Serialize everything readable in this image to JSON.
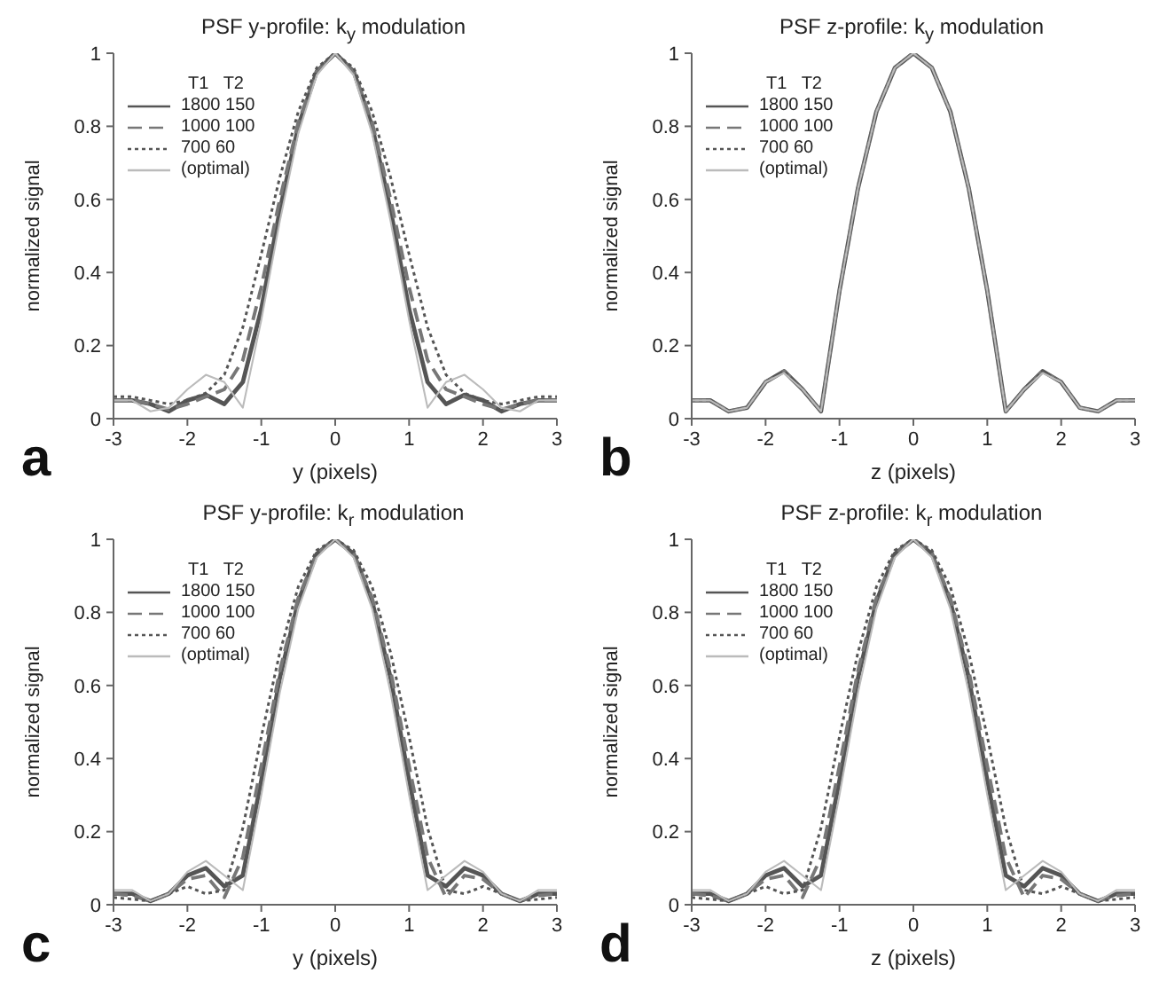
{
  "chart_data": [
    {
      "type": "line",
      "title": "PSF y-profile: k$_{y}$ modulation",
      "xlabel": "y (pixels)",
      "ylabel": "normalized signal",
      "legend_title": "T1   T2",
      "legend": "top left",
      "marker": "none",
      "annotations": [
        "a"
      ],
      "x": [
        -3,
        -2.75,
        -2.5,
        -2.25,
        -2,
        -1.75,
        -1.5,
        -1.25,
        -1,
        -0.75,
        -0.5,
        -0.25,
        0,
        0.25,
        0.5,
        0.75,
        1,
        1.25,
        1.5,
        1.75,
        2,
        2.25,
        2.5,
        2.75,
        3
      ],
      "xlim": [
        -3,
        3
      ],
      "xticks": [
        -3,
        -2,
        -1,
        0,
        1,
        2,
        3
      ],
      "ylim": [
        0,
        1
      ],
      "yticks": [
        0,
        0.2,
        0.4,
        0.6,
        0.8,
        1
      ],
      "series": [
        {
          "name": "1800 150",
          "color": "#555555",
          "line_style": "solid",
          "values": [
            0.05,
            0.05,
            0.04,
            0.02,
            0.05,
            0.065,
            0.04,
            0.1,
            0.3,
            0.57,
            0.8,
            0.95,
            1,
            0.95,
            0.8,
            0.57,
            0.3,
            0.1,
            0.04,
            0.065,
            0.05,
            0.02,
            0.04,
            0.05,
            0.05
          ]
        },
        {
          "name": "1000 100",
          "color": "#777777",
          "line_style": "dashed",
          "values": [
            0.05,
            0.05,
            0.04,
            0.025,
            0.04,
            0.06,
            0.08,
            0.16,
            0.36,
            0.6,
            0.81,
            0.95,
            1,
            0.95,
            0.81,
            0.6,
            0.36,
            0.16,
            0.08,
            0.06,
            0.04,
            0.025,
            0.04,
            0.05,
            0.05
          ]
        },
        {
          "name": "700 60",
          "color": "#555555",
          "line_style": "dotted",
          "values": [
            0.06,
            0.06,
            0.05,
            0.04,
            0.05,
            0.07,
            0.12,
            0.25,
            0.45,
            0.66,
            0.84,
            0.96,
            1,
            0.96,
            0.84,
            0.66,
            0.45,
            0.25,
            0.12,
            0.07,
            0.05,
            0.04,
            0.05,
            0.06,
            0.06
          ]
        },
        {
          "name": "(optimal)",
          "color": "#bbbbbb",
          "line_style": "solid",
          "values": [
            0.05,
            0.05,
            0.02,
            0.03,
            0.08,
            0.12,
            0.1,
            0.03,
            0.27,
            0.54,
            0.78,
            0.94,
            1,
            0.94,
            0.78,
            0.54,
            0.27,
            0.03,
            0.1,
            0.12,
            0.08,
            0.03,
            0.02,
            0.05,
            0.05
          ]
        }
      ]
    },
    {
      "type": "line",
      "title": "PSF z-profile: k$_{y}$ modulation",
      "xlabel": "z (pixels)",
      "ylabel": "normalized signal",
      "legend_title": "T1   T2",
      "legend": "top left",
      "marker": "none",
      "annotations": [
        "b"
      ],
      "x": [
        -3,
        -2.75,
        -2.5,
        -2.25,
        -2,
        -1.75,
        -1.5,
        -1.25,
        -1,
        -0.75,
        -0.5,
        -0.25,
        0,
        0.25,
        0.5,
        0.75,
        1,
        1.25,
        1.5,
        1.75,
        2,
        2.25,
        2.5,
        2.75,
        3
      ],
      "xlim": [
        -3,
        3
      ],
      "xticks": [
        -3,
        -2,
        -1,
        0,
        1,
        2,
        3
      ],
      "ylim": [
        0,
        1
      ],
      "yticks": [
        0,
        0.2,
        0.4,
        0.6,
        0.8,
        1
      ],
      "series": [
        {
          "name": "1800 150",
          "color": "#555555",
          "line_style": "solid",
          "values": [
            0.05,
            0.05,
            0.02,
            0.03,
            0.1,
            0.13,
            0.08,
            0.02,
            0.35,
            0.63,
            0.84,
            0.96,
            1,
            0.96,
            0.84,
            0.63,
            0.35,
            0.02,
            0.08,
            0.13,
            0.1,
            0.03,
            0.02,
            0.05,
            0.05
          ]
        },
        {
          "name": "1000 100",
          "color": "#777777",
          "line_style": "dashed",
          "values": [
            0.05,
            0.05,
            0.02,
            0.03,
            0.1,
            0.13,
            0.08,
            0.02,
            0.35,
            0.63,
            0.84,
            0.96,
            1,
            0.96,
            0.84,
            0.63,
            0.35,
            0.02,
            0.08,
            0.13,
            0.1,
            0.03,
            0.02,
            0.05,
            0.05
          ]
        },
        {
          "name": "700 60",
          "color": "#555555",
          "line_style": "dotted",
          "values": [
            0.05,
            0.05,
            0.02,
            0.03,
            0.1,
            0.13,
            0.08,
            0.02,
            0.35,
            0.63,
            0.84,
            0.96,
            1,
            0.96,
            0.84,
            0.63,
            0.35,
            0.02,
            0.08,
            0.13,
            0.1,
            0.03,
            0.02,
            0.05,
            0.05
          ]
        },
        {
          "name": "(optimal)",
          "color": "#bbbbbb",
          "line_style": "solid",
          "values": [
            0.05,
            0.05,
            0.02,
            0.03,
            0.1,
            0.125,
            0.08,
            0.02,
            0.35,
            0.63,
            0.84,
            0.96,
            1,
            0.96,
            0.84,
            0.63,
            0.35,
            0.02,
            0.08,
            0.125,
            0.1,
            0.03,
            0.02,
            0.05,
            0.05
          ]
        }
      ]
    },
    {
      "type": "line",
      "title": "PSF y-profile: k$_{r}$ modulation",
      "xlabel": "y (pixels)",
      "ylabel": "normalized signal",
      "legend_title": "T1   T2",
      "legend": "top left",
      "marker": "none",
      "annotations": [
        "c"
      ],
      "x": [
        -3,
        -2.75,
        -2.5,
        -2.25,
        -2,
        -1.75,
        -1.5,
        -1.25,
        -1,
        -0.75,
        -0.5,
        -0.25,
        0,
        0.25,
        0.5,
        0.75,
        1,
        1.25,
        1.5,
        1.75,
        2,
        2.25,
        2.5,
        2.75,
        3
      ],
      "xlim": [
        -3,
        3
      ],
      "xticks": [
        -3,
        -2,
        -1,
        0,
        1,
        2,
        3
      ],
      "ylim": [
        0,
        1
      ],
      "yticks": [
        0,
        0.2,
        0.4,
        0.6,
        0.8,
        1
      ],
      "series": [
        {
          "name": "1800 150",
          "color": "#555555",
          "line_style": "solid",
          "values": [
            0.03,
            0.03,
            0.01,
            0.03,
            0.08,
            0.1,
            0.05,
            0.08,
            0.34,
            0.62,
            0.83,
            0.96,
            1,
            0.96,
            0.83,
            0.62,
            0.34,
            0.08,
            0.05,
            0.1,
            0.08,
            0.03,
            0.01,
            0.03,
            0.03
          ]
        },
        {
          "name": "1000 100",
          "color": "#777777",
          "line_style": "dashed",
          "values": [
            0.03,
            0.025,
            0.01,
            0.03,
            0.07,
            0.08,
            0.02,
            0.13,
            0.38,
            0.64,
            0.84,
            0.96,
            1,
            0.96,
            0.84,
            0.64,
            0.38,
            0.13,
            0.02,
            0.08,
            0.07,
            0.03,
            0.01,
            0.025,
            0.03
          ]
        },
        {
          "name": "700 60",
          "color": "#555555",
          "line_style": "dotted",
          "values": [
            0.02,
            0.015,
            0.01,
            0.03,
            0.05,
            0.03,
            0.04,
            0.21,
            0.46,
            0.69,
            0.87,
            0.97,
            1,
            0.97,
            0.87,
            0.69,
            0.46,
            0.21,
            0.04,
            0.03,
            0.05,
            0.03,
            0.01,
            0.015,
            0.02
          ]
        },
        {
          "name": "(optimal)",
          "color": "#bbbbbb",
          "line_style": "solid",
          "values": [
            0.04,
            0.04,
            0.01,
            0.03,
            0.09,
            0.12,
            0.08,
            0.04,
            0.3,
            0.58,
            0.81,
            0.95,
            1,
            0.95,
            0.81,
            0.58,
            0.3,
            0.04,
            0.08,
            0.12,
            0.09,
            0.03,
            0.01,
            0.04,
            0.04
          ]
        }
      ]
    },
    {
      "type": "line",
      "title": "PSF z-profile: k$_{r}$ modulation",
      "xlabel": "z (pixels)",
      "ylabel": "normalized signal",
      "legend_title": "T1   T2",
      "legend": "top left",
      "marker": "none",
      "annotations": [
        "d"
      ],
      "x": [
        -3,
        -2.75,
        -2.5,
        -2.25,
        -2,
        -1.75,
        -1.5,
        -1.25,
        -1,
        -0.75,
        -0.5,
        -0.25,
        0,
        0.25,
        0.5,
        0.75,
        1,
        1.25,
        1.5,
        1.75,
        2,
        2.25,
        2.5,
        2.75,
        3
      ],
      "xlim": [
        -3,
        3
      ],
      "xticks": [
        -3,
        -2,
        -1,
        0,
        1,
        2,
        3
      ],
      "ylim": [
        0,
        1
      ],
      "yticks": [
        0,
        0.2,
        0.4,
        0.6,
        0.8,
        1
      ],
      "series": [
        {
          "name": "1800 150",
          "color": "#555555",
          "line_style": "solid",
          "values": [
            0.03,
            0.03,
            0.01,
            0.03,
            0.08,
            0.1,
            0.05,
            0.08,
            0.34,
            0.62,
            0.83,
            0.96,
            1,
            0.96,
            0.83,
            0.62,
            0.34,
            0.08,
            0.05,
            0.1,
            0.08,
            0.03,
            0.01,
            0.03,
            0.03
          ]
        },
        {
          "name": "1000 100",
          "color": "#777777",
          "line_style": "dashed",
          "values": [
            0.03,
            0.025,
            0.01,
            0.03,
            0.07,
            0.08,
            0.02,
            0.13,
            0.38,
            0.64,
            0.84,
            0.96,
            1,
            0.96,
            0.84,
            0.64,
            0.38,
            0.13,
            0.02,
            0.08,
            0.07,
            0.03,
            0.01,
            0.025,
            0.03
          ]
        },
        {
          "name": "700 60",
          "color": "#555555",
          "line_style": "dotted",
          "values": [
            0.02,
            0.015,
            0.01,
            0.03,
            0.05,
            0.03,
            0.04,
            0.21,
            0.46,
            0.69,
            0.87,
            0.97,
            1,
            0.97,
            0.87,
            0.69,
            0.46,
            0.21,
            0.04,
            0.03,
            0.05,
            0.03,
            0.01,
            0.015,
            0.02
          ]
        },
        {
          "name": "(optimal)",
          "color": "#bbbbbb",
          "line_style": "solid",
          "values": [
            0.04,
            0.04,
            0.01,
            0.03,
            0.09,
            0.12,
            0.08,
            0.04,
            0.3,
            0.58,
            0.81,
            0.95,
            1,
            0.95,
            0.81,
            0.58,
            0.3,
            0.04,
            0.08,
            0.12,
            0.09,
            0.03,
            0.01,
            0.04,
            0.04
          ]
        }
      ]
    }
  ]
}
